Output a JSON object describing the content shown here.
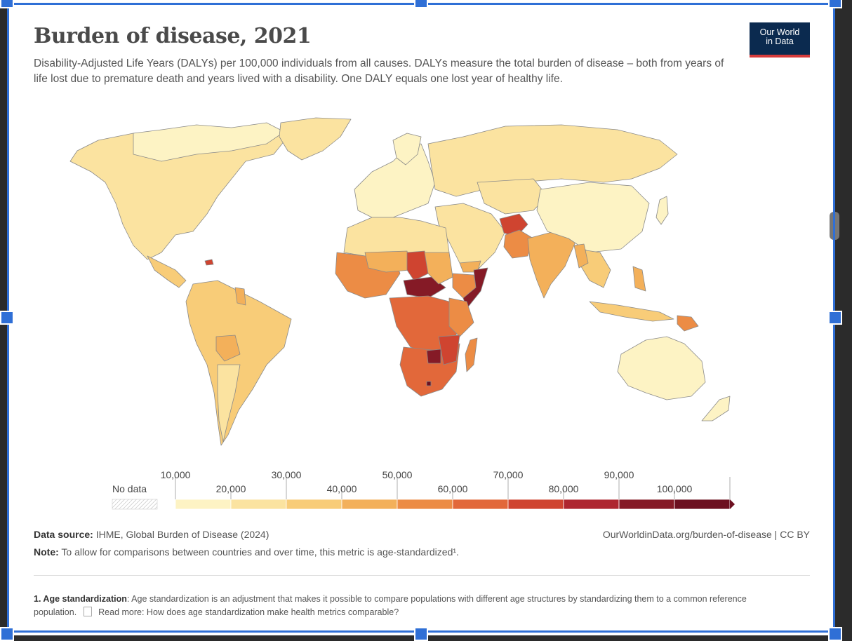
{
  "header": {
    "title": "Burden of disease, 2021",
    "subtitle": "Disability-Adjusted Life Years (DALYs) per 100,000 individuals from all causes. DALYs measure the total burden of disease – both from years of life lost due to premature death and years lived with a disability. One DALY equals one lost year of healthy life.",
    "logo_line1": "Our World",
    "logo_line2": "in Data"
  },
  "legend": {
    "no_data_label": "No data",
    "top_labels": [
      "10,000",
      "30,000",
      "50,000",
      "70,000",
      "90,000"
    ],
    "bottom_labels": [
      "20,000",
      "40,000",
      "60,000",
      "80,000",
      "100,000"
    ],
    "colors": [
      "#fdf3c4",
      "#fbe3a0",
      "#f8cc78",
      "#f3b05a",
      "#ec8c45",
      "#e2683a",
      "#cf4430",
      "#ae2630",
      "#851a26",
      "#6c1020"
    ]
  },
  "footer": {
    "source_label": "Data source:",
    "source_text": "IHME, Global Burden of Disease (2024)",
    "url_text": "OurWorldinData.org/burden-of-disease | CC BY",
    "note_label": "Note:",
    "note_text": "To allow for comparisons between countries and over time, this metric is age-standardized¹.",
    "footnote_label": "1. Age standardization",
    "footnote_text": ": Age standardization is an adjustment that makes it possible to compare populations with different age structures by standardizing them to a common reference population.",
    "read_more": "Read more: How does age standardization make health metrics comparable?"
  },
  "colors": {
    "ocean": "#ffffff",
    "border": "#8a8a8a",
    "selection": "#2f6fd6"
  }
}
